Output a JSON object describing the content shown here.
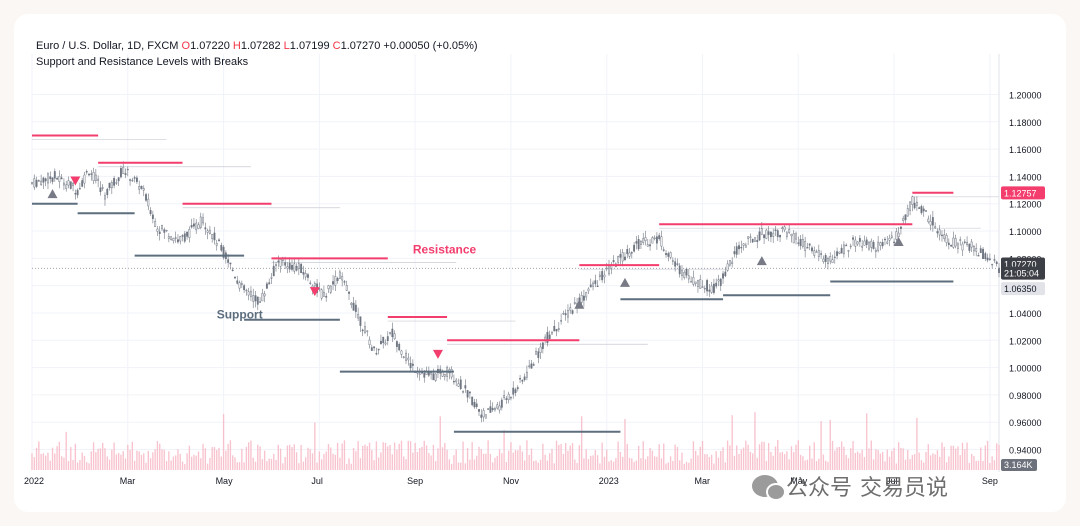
{
  "header": {
    "symbol": "Euro / U.S. Dollar, 1D, FXCM",
    "o_label": "O",
    "o_value": "1.07220",
    "h_label": "H",
    "h_value": "1.07282",
    "l_label": "L",
    "l_value": "1.07199",
    "c_label": "C",
    "c_value": "1.07270",
    "change": "+0.00050 (+0.05%)",
    "indicator": "Support and Resistance Levels with Breaks"
  },
  "watermark": {
    "text1": "公众号",
    "text2": "交易员说",
    "icon": "wechat-icon"
  },
  "colors": {
    "resistance": "#f23d6d",
    "support": "#5d6e7e",
    "candle": "#6e7580",
    "volume": "#f6b4c2",
    "accent_label": "#f23d6d"
  },
  "chart_data": {
    "type": "candlestick",
    "title": "Support and Resistance Levels with Breaks",
    "xlabel": "",
    "ylabel": "",
    "ylim": [
      0.925,
      1.215
    ],
    "grid": true,
    "x_tick_labels": [
      "2022",
      "Mar",
      "May",
      "Jul",
      "Sep",
      "Nov",
      "2023",
      "Mar",
      "May",
      "Jul",
      "Sep"
    ],
    "x_tick_index": [
      0,
      42,
      84,
      126,
      168,
      210,
      252,
      294,
      336,
      378,
      420
    ],
    "y_tick_labels": [
      "1.20000",
      "1.18000",
      "1.16000",
      "1.14000",
      "1.12000",
      "1.10000",
      "1.08000",
      "1.06000",
      "1.04000",
      "1.02000",
      "1.00000",
      "0.98000",
      "0.96000",
      "0.94000"
    ],
    "y_tick_values": [
      1.2,
      1.18,
      1.16,
      1.14,
      1.12,
      1.1,
      1.08,
      1.06,
      1.04,
      1.02,
      1.0,
      0.98,
      0.96,
      0.94
    ],
    "x_count": 425,
    "price_path": [
      [
        0,
        1.135
      ],
      [
        10,
        1.14
      ],
      [
        20,
        1.13
      ],
      [
        25,
        1.145
      ],
      [
        32,
        1.127
      ],
      [
        40,
        1.145
      ],
      [
        48,
        1.132
      ],
      [
        55,
        1.103
      ],
      [
        65,
        1.093
      ],
      [
        75,
        1.108
      ],
      [
        85,
        1.082
      ],
      [
        92,
        1.058
      ],
      [
        100,
        1.048
      ],
      [
        108,
        1.078
      ],
      [
        118,
        1.072
      ],
      [
        128,
        1.052
      ],
      [
        135,
        1.068
      ],
      [
        142,
        1.042
      ],
      [
        150,
        1.012
      ],
      [
        158,
        1.025
      ],
      [
        166,
        1.002
      ],
      [
        175,
        0.993
      ],
      [
        183,
        0.998
      ],
      [
        190,
        0.983
      ],
      [
        198,
        0.965
      ],
      [
        205,
        0.972
      ],
      [
        215,
        0.99
      ],
      [
        225,
        1.02
      ],
      [
        235,
        1.04
      ],
      [
        245,
        1.058
      ],
      [
        255,
        1.075
      ],
      [
        265,
        1.09
      ],
      [
        275,
        1.095
      ],
      [
        282,
        1.075
      ],
      [
        292,
        1.062
      ],
      [
        300,
        1.058
      ],
      [
        310,
        1.088
      ],
      [
        320,
        1.098
      ],
      [
        330,
        1.1
      ],
      [
        340,
        1.088
      ],
      [
        350,
        1.078
      ],
      [
        360,
        1.092
      ],
      [
        372,
        1.088
      ],
      [
        380,
        1.098
      ],
      [
        386,
        1.122
      ],
      [
        392,
        1.112
      ],
      [
        402,
        1.093
      ],
      [
        412,
        1.088
      ],
      [
        420,
        1.08
      ],
      [
        424,
        1.0727
      ]
    ],
    "resistance_levels": [
      {
        "x1": 0,
        "x2": 29,
        "y": 1.17
      },
      {
        "x1": 29,
        "x2": 66,
        "y": 1.15
      },
      {
        "x1": 66,
        "x2": 105,
        "y": 1.12
      },
      {
        "x1": 105,
        "x2": 156,
        "y": 1.08
      },
      {
        "x1": 156,
        "x2": 182,
        "y": 1.037
      },
      {
        "x1": 182,
        "x2": 240,
        "y": 1.02
      },
      {
        "x1": 240,
        "x2": 275,
        "y": 1.075
      },
      {
        "x1": 275,
        "x2": 386,
        "y": 1.105
      },
      {
        "x1": 386,
        "x2": 404,
        "y": 1.128
      }
    ],
    "support_levels": [
      {
        "x1": 0,
        "x2": 20,
        "y": 1.12
      },
      {
        "x1": 20,
        "x2": 45,
        "y": 1.113
      },
      {
        "x1": 45,
        "x2": 93,
        "y": 1.082
      },
      {
        "x1": 93,
        "x2": 135,
        "y": 1.035
      },
      {
        "x1": 135,
        "x2": 185,
        "y": 0.997
      },
      {
        "x1": 185,
        "x2": 258,
        "y": 0.953
      },
      {
        "x1": 258,
        "x2": 303,
        "y": 1.05
      },
      {
        "x1": 303,
        "x2": 350,
        "y": 1.053
      },
      {
        "x1": 350,
        "x2": 404,
        "y": 1.063
      }
    ],
    "break_up_markers": [
      {
        "x": 9,
        "y": 1.127
      },
      {
        "x": 240,
        "y": 1.046
      },
      {
        "x": 260,
        "y": 1.062
      },
      {
        "x": 320,
        "y": 1.078
      },
      {
        "x": 380,
        "y": 1.092
      }
    ],
    "break_down_markers": [
      {
        "x": 19,
        "y": 1.137
      },
      {
        "x": 124,
        "y": 1.056
      },
      {
        "x": 178,
        "y": 1.01
      }
    ],
    "annotations": [
      {
        "text": "Resistance",
        "x": 167,
        "y": 1.0835
      },
      {
        "text": "Support",
        "x": 81,
        "y": 1.036
      }
    ],
    "price_labels": [
      {
        "text": "1.12757",
        "y": 1.1276,
        "bg": "#f23d6d",
        "fg": "#ffffff"
      },
      {
        "text": "1.07270",
        "y": 1.0755,
        "bg": "#3c3f45",
        "fg": "#ffffff"
      },
      {
        "text": "21:05:04",
        "y": 1.0688,
        "bg": "#3c3f45",
        "fg": "#ffffff"
      },
      {
        "text": "1.06350",
        "y": 1.0575,
        "bg": "#e1e3e8",
        "fg": "#131722"
      }
    ],
    "volume_label": "3.164K"
  }
}
